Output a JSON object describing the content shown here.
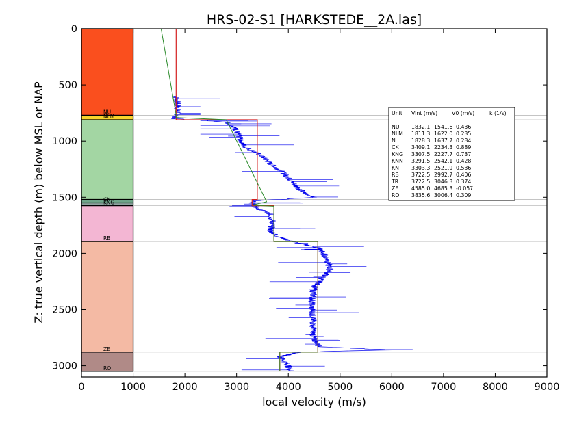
{
  "chart_data": {
    "type": "line",
    "title": "HRS-02-S1 [HARKSTEDE__2A.las]",
    "xlabel": "local velocity (m/s)",
    "ylabel": "Z: true vertical depth (m) below MSL or NAP",
    "xlim": [
      0,
      9000
    ],
    "ylim": [
      0,
      3100
    ],
    "y_inverted": true,
    "x_ticks": [
      0,
      1000,
      2000,
      3000,
      4000,
      5000,
      6000,
      7000,
      8000,
      9000
    ],
    "y_ticks": [
      0,
      500,
      1000,
      1500,
      2000,
      2500,
      3000
    ],
    "grid": false,
    "units": [
      {
        "label": "",
        "top": 0,
        "bottom": 770,
        "color": "#fa4f1e"
      },
      {
        "label": "NU",
        "top": 770,
        "bottom": 770,
        "color": "#fcb84a"
      },
      {
        "label": "NLM",
        "top": 770,
        "bottom": 810,
        "color": "#f7d42d"
      },
      {
        "label": "",
        "top": 810,
        "bottom": 1520,
        "color": "#a3d6a3"
      },
      {
        "label": "CK",
        "top": 1520,
        "bottom": 1550,
        "color": "#6fa58a"
      },
      {
        "label": "KNG",
        "top": 1550,
        "bottom": 1575,
        "color": "#8ea5a0"
      },
      {
        "label": "",
        "top": 1575,
        "bottom": 1895,
        "color": "#f3b6d3"
      },
      {
        "label": "RB",
        "top": 1895,
        "bottom": 1895,
        "color": "#f3b6d3"
      },
      {
        "label": "",
        "top": 1895,
        "bottom": 2880,
        "color": "#f4baa4"
      },
      {
        "label": "ZE",
        "top": 2880,
        "bottom": 2880,
        "color": "#f4baa4"
      },
      {
        "label": "RO",
        "top": 2880,
        "bottom": 3050,
        "color": "#b08a87"
      }
    ],
    "boundaries": [
      770,
      810,
      1520,
      1550,
      1575,
      1895,
      2880,
      3050
    ],
    "interval_velocity_series": {
      "name": "Vint",
      "color": "#d42020",
      "points": [
        [
          1830,
          0
        ],
        [
          1830,
          810
        ],
        [
          3400,
          810
        ],
        [
          3400,
          1520
        ],
        [
          3300,
          1520
        ],
        [
          3300,
          1575
        ],
        [
          3720,
          1575
        ],
        [
          3720,
          1895
        ],
        [
          4570,
          1895
        ],
        [
          4570,
          2880
        ],
        [
          3835,
          2880
        ],
        [
          3835,
          3050
        ]
      ]
    },
    "fit_series": {
      "name": "V0 + k z",
      "color": "#2a8a2a",
      "points": [
        [
          1540,
          0
        ],
        [
          1830,
          770
        ],
        [
          1830,
          790
        ],
        [
          2800,
          810
        ],
        [
          3580,
          1540
        ],
        [
          3300,
          1570
        ],
        [
          3720,
          1580
        ],
        [
          3720,
          1895
        ],
        [
          4570,
          1895
        ],
        [
          4570,
          2880
        ],
        [
          3835,
          2880
        ],
        [
          3835,
          3050
        ]
      ]
    },
    "log_series": {
      "name": "local velocity log",
      "color": "#0000ee",
      "anchors": [
        [
          1830,
          600
        ],
        [
          1860,
          680
        ],
        [
          1860,
          760
        ],
        [
          1790,
          800
        ],
        [
          2800,
          830
        ],
        [
          2950,
          870
        ],
        [
          3050,
          960
        ],
        [
          3150,
          1050
        ],
        [
          3450,
          1120
        ],
        [
          3650,
          1200
        ],
        [
          3900,
          1280
        ],
        [
          4150,
          1400
        ],
        [
          4300,
          1460
        ],
        [
          4500,
          1500
        ],
        [
          3850,
          1520
        ],
        [
          3400,
          1530
        ],
        [
          3300,
          1550
        ],
        [
          3400,
          1600
        ],
        [
          3650,
          1650
        ],
        [
          3700,
          1720
        ],
        [
          3650,
          1800
        ],
        [
          3800,
          1850
        ],
        [
          4100,
          1900
        ],
        [
          4600,
          1950
        ],
        [
          4750,
          2050
        ],
        [
          4800,
          2150
        ],
        [
          4700,
          2200
        ],
        [
          4500,
          2300
        ],
        [
          4450,
          2450
        ],
        [
          4480,
          2600
        ],
        [
          4480,
          2750
        ],
        [
          4600,
          2830
        ],
        [
          6000,
          2860
        ],
        [
          4200,
          2880
        ],
        [
          3850,
          2920
        ],
        [
          4000,
          3000
        ],
        [
          4050,
          3050
        ]
      ]
    },
    "legend": {
      "placement": "right",
      "header": [
        "Unit",
        "Vint (m/s)",
        "V0 (m/s)",
        "k (1/s)"
      ],
      "rows": [
        [
          "NU",
          "1832.1",
          "1541.6",
          "0.436"
        ],
        [
          "NLM",
          "1811.3",
          "1622.0",
          "0.235"
        ],
        [
          "N",
          "1828.3",
          "1637.7",
          "0.284"
        ],
        [
          "CK",
          "3409.1",
          "2234.3",
          "0.889"
        ],
        [
          "KNG",
          "3307.5",
          "2227.7",
          "0.737"
        ],
        [
          "KNN",
          "3291.5",
          "2542.1",
          "0.428"
        ],
        [
          "KN",
          "3303.3",
          "2521.9",
          "0.536"
        ],
        [
          "RB",
          "3722.5",
          "2992.7",
          "0.406"
        ],
        [
          "TR",
          "3722.5",
          "3046.3",
          "0.374"
        ],
        [
          "ZE",
          "4585.0",
          "4685.3",
          "-0.057"
        ],
        [
          "RO",
          "3835.6",
          "3006.4",
          "0.309"
        ]
      ]
    }
  }
}
